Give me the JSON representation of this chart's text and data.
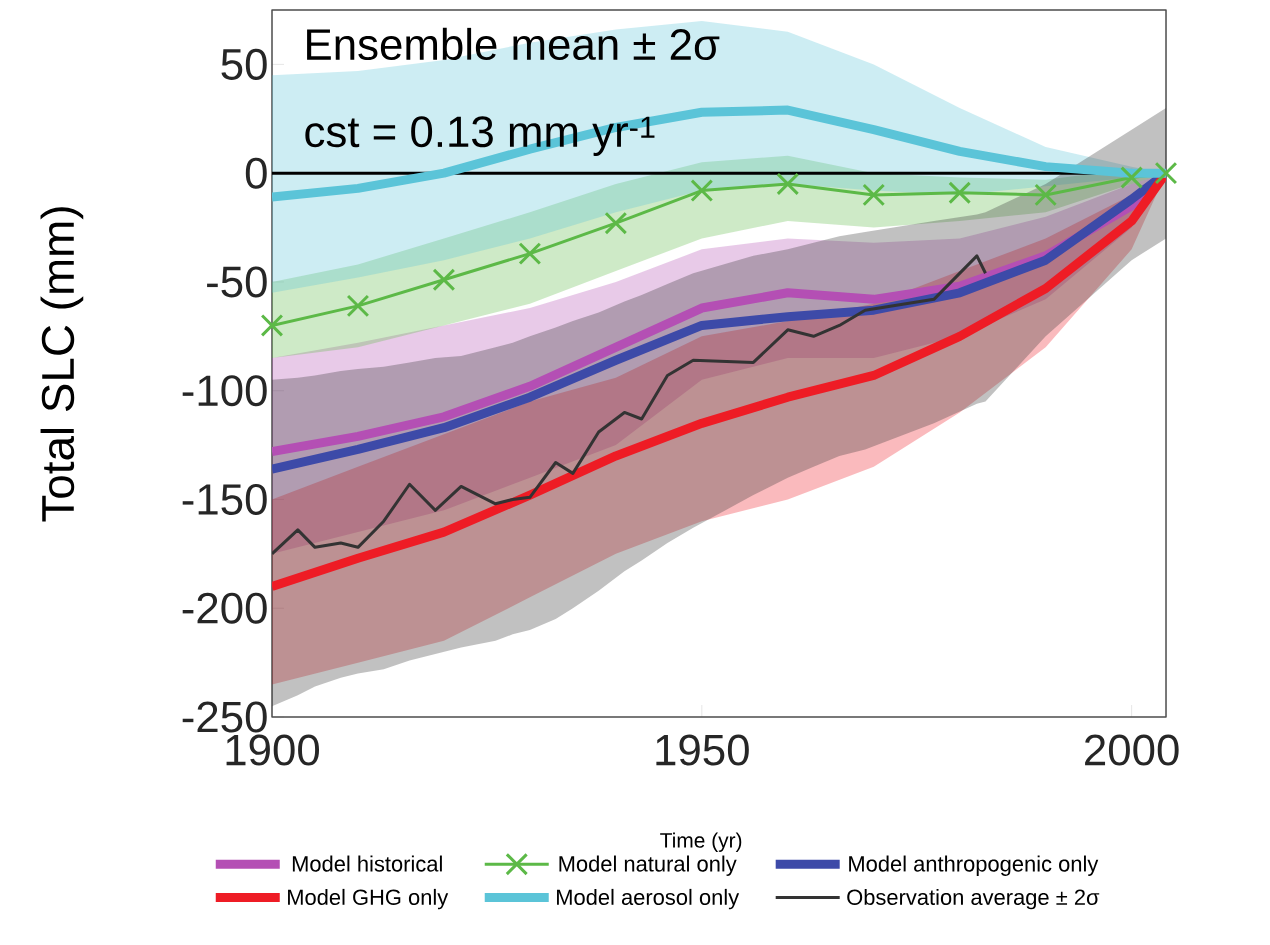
{
  "chart_data": {
    "type": "line",
    "xlabel": "Time (yr)",
    "ylabel": "Total SLC (mm)",
    "annotations": [
      "Ensemble mean ± 2σ",
      "cst = 0.13 mm yr$^{-1}$"
    ],
    "xlim": [
      1900,
      2004
    ],
    "ylim": [
      -250,
      75
    ],
    "xticks": [
      1900,
      1950,
      2000
    ],
    "yticks": [
      -250,
      -200,
      -150,
      -100,
      -50,
      0,
      50
    ],
    "x": [
      1900,
      1910,
      1920,
      1930,
      1940,
      1950,
      1960,
      1970,
      1980,
      1990,
      2000,
      2004
    ],
    "legend": "bottom",
    "grid": false,
    "marker": "none",
    "line_style": "solid",
    "ref_lines": [
      {
        "axis": "y",
        "value": 0,
        "color": "#000000"
      }
    ],
    "series": [
      {
        "name": "Model historical",
        "color": "#b44fb4",
        "values": [
          -128,
          -121,
          -112,
          -98,
          -80,
          -62,
          -55,
          -58,
          -52,
          -38,
          -15,
          0
        ],
        "lower": [
          -175,
          -165,
          -155,
          -140,
          -125,
          -95,
          -85,
          -85,
          -75,
          -58,
          -25,
          0
        ],
        "upper": [
          -85,
          -78,
          -70,
          -62,
          -50,
          -35,
          -30,
          -32,
          -30,
          -20,
          -5,
          0
        ]
      },
      {
        "name": "Model natural only",
        "color": "#5cb947",
        "marker": "cross",
        "values": [
          -70,
          -61,
          -49,
          -37,
          -23,
          -8,
          -5,
          -10,
          -9,
          -10,
          -2,
          0
        ],
        "lower": [
          -85,
          -80,
          -70,
          -60,
          -45,
          -30,
          -22,
          -25,
          -22,
          -18,
          -5,
          0
        ],
        "upper": [
          -50,
          -42,
          -30,
          -18,
          -5,
          5,
          8,
          0,
          -2,
          -3,
          2,
          0
        ]
      },
      {
        "name": "Model anthropogenic only",
        "color": "#3d4aa8",
        "values": [
          -136,
          -127,
          -117,
          -103,
          -86,
          -70,
          -66,
          -63,
          -55,
          -40,
          -12,
          0
        ]
      },
      {
        "name": "Model GHG only",
        "color": "#ee1c25",
        "values": [
          -190,
          -177,
          -165,
          -148,
          -130,
          -115,
          -103,
          -93,
          -75,
          -53,
          -22,
          0
        ],
        "lower": [
          -235,
          -225,
          -215,
          -195,
          -175,
          -160,
          -150,
          -135,
          -110,
          -80,
          -35,
          0
        ],
        "upper": [
          -150,
          -135,
          -120,
          -105,
          -94,
          -75,
          -68,
          -60,
          -45,
          -30,
          -10,
          0
        ]
      },
      {
        "name": "Model aerosol only",
        "color": "#5bc4d8",
        "values": [
          -11,
          -7,
          0,
          11,
          21,
          28,
          29,
          20,
          10,
          3,
          0,
          0
        ],
        "lower": [
          -55,
          -48,
          -40,
          -30,
          -18,
          -8,
          -5,
          -8,
          -10,
          -6,
          -2,
          0
        ],
        "upper": [
          45,
          47,
          52,
          60,
          66,
          70,
          65,
          50,
          30,
          12,
          3,
          0
        ]
      },
      {
        "name": "Observation average ± 2σ",
        "color": "#333333",
        "x": [
          1900,
          1903,
          1905,
          1908,
          1910,
          1913,
          1916,
          1919,
          1922,
          1926,
          1928,
          1930,
          1933,
          1935,
          1938,
          1941,
          1943,
          1946,
          1949,
          1956,
          1960,
          1963,
          1966,
          1969,
          1977,
          1982,
          1983,
          1990,
          2000,
          2004
        ],
        "values": [
          -175,
          -164,
          -172,
          -170,
          -172,
          -160,
          -143,
          -155,
          -144,
          -152,
          -150,
          -149,
          -133,
          -138,
          -119,
          -110,
          -113,
          -93,
          -86,
          -87,
          -72,
          -75,
          -70,
          -63,
          -58,
          -38,
          -46,
          null,
          null,
          null
        ],
        "lower": [
          -245,
          -240,
          -236,
          -232,
          -230,
          -228,
          -224,
          -221,
          -218,
          -215,
          -212,
          -210,
          -205,
          -200,
          -192,
          -183,
          -178,
          -170,
          -163,
          -148,
          -140,
          -135,
          -130,
          -127,
          -115,
          -106,
          -105,
          -75,
          -40,
          -30
        ],
        "upper": [
          -95,
          -94,
          -93,
          -91,
          -90,
          -89,
          -87,
          -85,
          -84,
          -80,
          -78,
          -75,
          -71,
          -68,
          -64,
          -59,
          -56,
          -51,
          -46,
          -38,
          -35,
          -32,
          -29,
          -27,
          -22,
          -19,
          -18,
          -5,
          20,
          30
        ]
      }
    ]
  }
}
